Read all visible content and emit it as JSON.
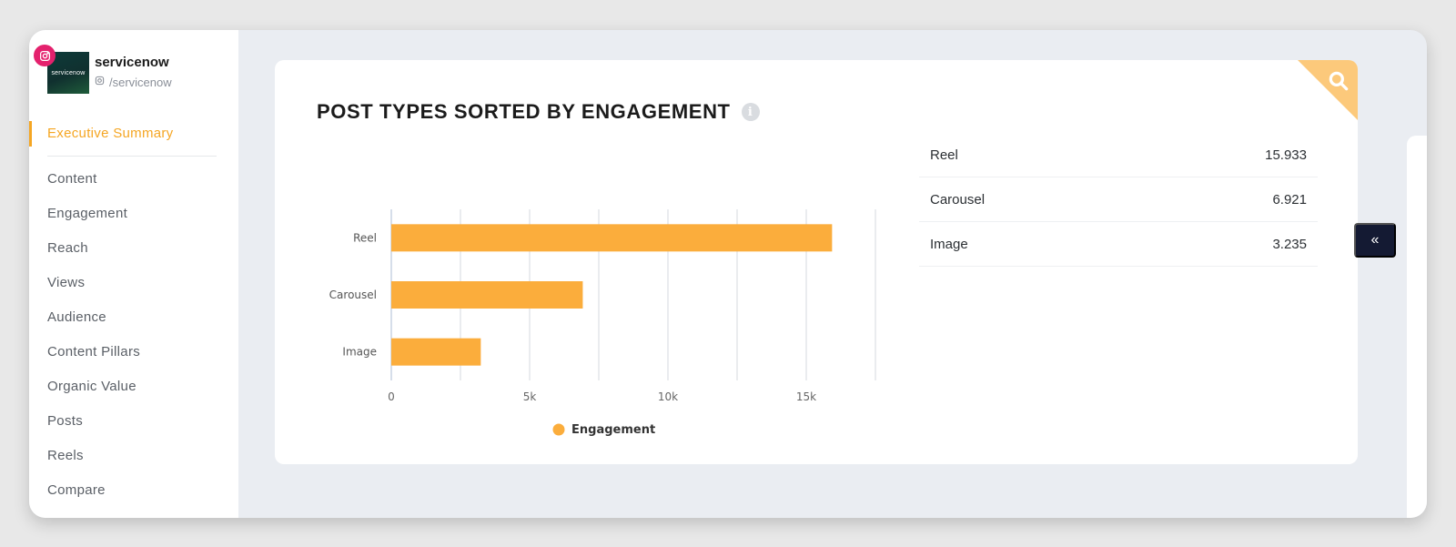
{
  "profile": {
    "name": "servicenow",
    "handle": "/servicenow",
    "avatar_text": "servicenow"
  },
  "sidebar": {
    "items": [
      {
        "label": "Executive Summary",
        "active": true
      },
      {
        "label": "Content"
      },
      {
        "label": "Engagement"
      },
      {
        "label": "Reach"
      },
      {
        "label": "Views"
      },
      {
        "label": "Audience"
      },
      {
        "label": "Content Pillars"
      },
      {
        "label": "Organic Value"
      },
      {
        "label": "Posts"
      },
      {
        "label": "Reels"
      },
      {
        "label": "Compare"
      }
    ]
  },
  "card": {
    "title": "POST TYPES SORTED BY ENGAGEMENT",
    "info_icon": "info-icon",
    "corner_icon": "search-icon"
  },
  "table": {
    "rows": [
      {
        "label": "Reel",
        "value": "15.933"
      },
      {
        "label": "Carousel",
        "value": "6.921"
      },
      {
        "label": "Image",
        "value": "3.235"
      }
    ]
  },
  "collapse_button": {
    "label": "«"
  },
  "colors": {
    "accent": "#f5a623",
    "bar": "#fbad3c",
    "instagram": "#e4216d",
    "dark_button": "#141a33"
  },
  "chart_data": {
    "type": "bar",
    "orientation": "horizontal",
    "categories": [
      "Reel",
      "Carousel",
      "Image"
    ],
    "series": [
      {
        "name": "Engagement",
        "values": [
          15933,
          6921,
          3235
        ]
      }
    ],
    "x_ticks": [
      "0",
      "5k",
      "10k",
      "15k"
    ],
    "xlim": [
      0,
      17500
    ],
    "grid": true,
    "legend_position": "bottom"
  }
}
